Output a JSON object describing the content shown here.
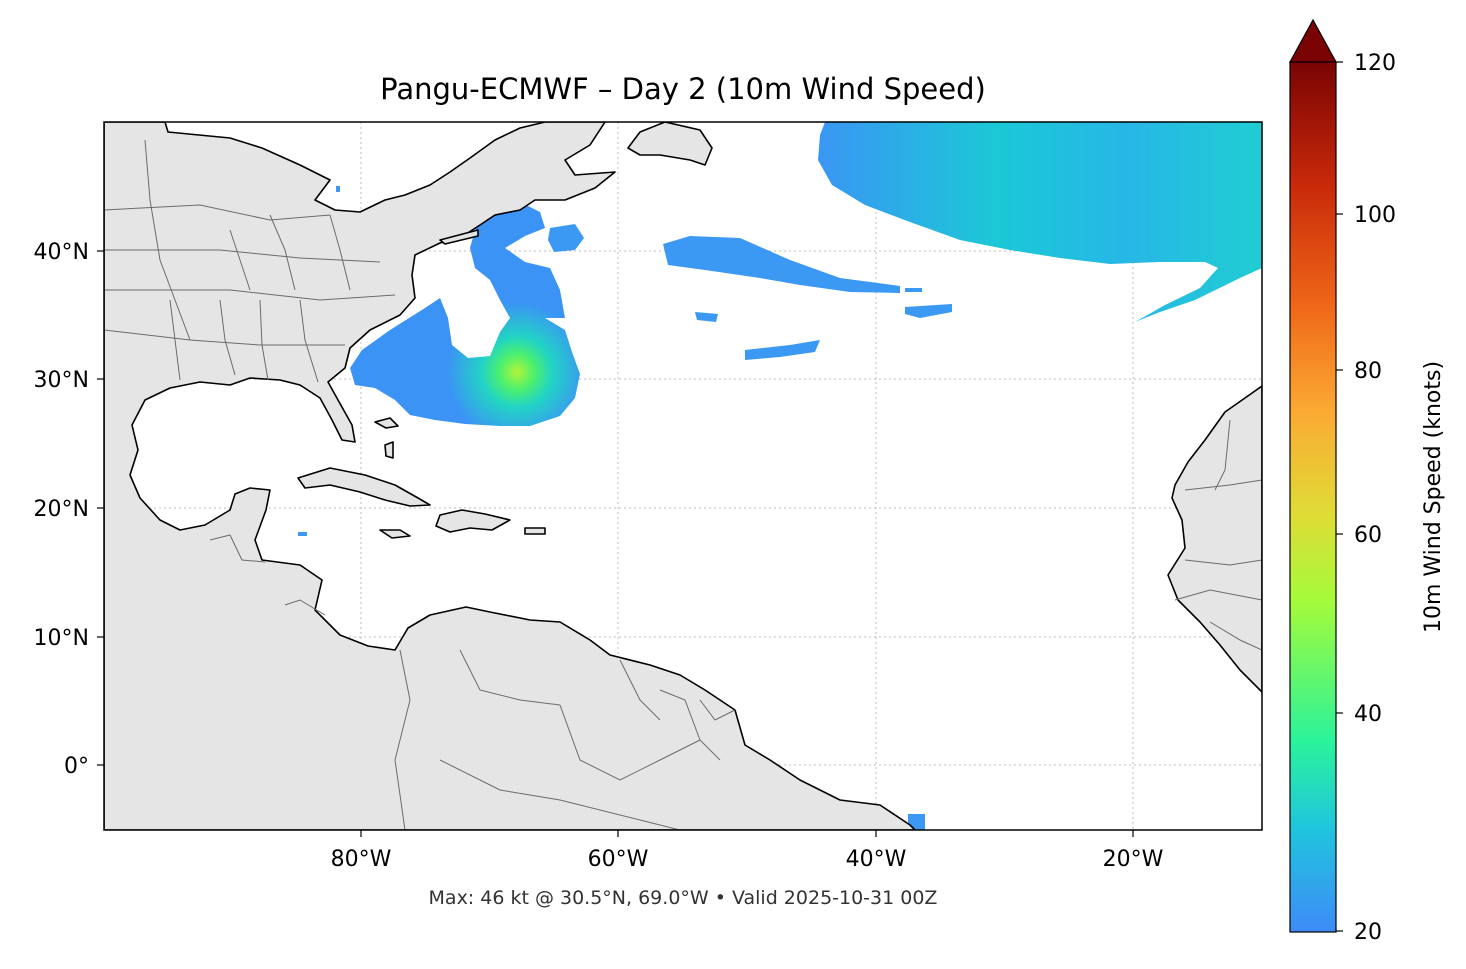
{
  "title": "Pangu-ECMWF – Day 2 (10m Wind Speed)",
  "footer": "Max: 46 kt @ 30.5°N, 69.0°W • Valid 2025-10-31 00Z",
  "axes": {
    "x_ticks": [
      "80°W",
      "60°W",
      "40°W",
      "20°W"
    ],
    "y_ticks": [
      "40°N",
      "30°N",
      "20°N",
      "10°N",
      "0°"
    ]
  },
  "colorbar": {
    "label": "10m Wind Speed (knots)",
    "ticks": [
      "120",
      "100",
      "80",
      "60",
      "40",
      "20"
    ],
    "range": [
      20,
      120
    ],
    "extend": "max",
    "colormap": [
      "#3e8bf7",
      "#1fc6dd",
      "#2bf39a",
      "#a4fb3a",
      "#e0dc36",
      "#fba933",
      "#ef6718",
      "#c8290a",
      "#7a0403"
    ]
  },
  "chart_data": {
    "type": "heatmap",
    "title": "Pangu-ECMWF – Day 2 (10m Wind Speed)",
    "variable": "10m Wind Speed (knots)",
    "x_range_lon": [
      -100,
      -10
    ],
    "y_range_lat": [
      -5,
      50
    ],
    "color_range": [
      20,
      120
    ],
    "max": {
      "value": 46,
      "unit": "kt",
      "lat": 30.5,
      "lon": -69.0
    },
    "valid_time": "2025-10-31 00Z"
  }
}
